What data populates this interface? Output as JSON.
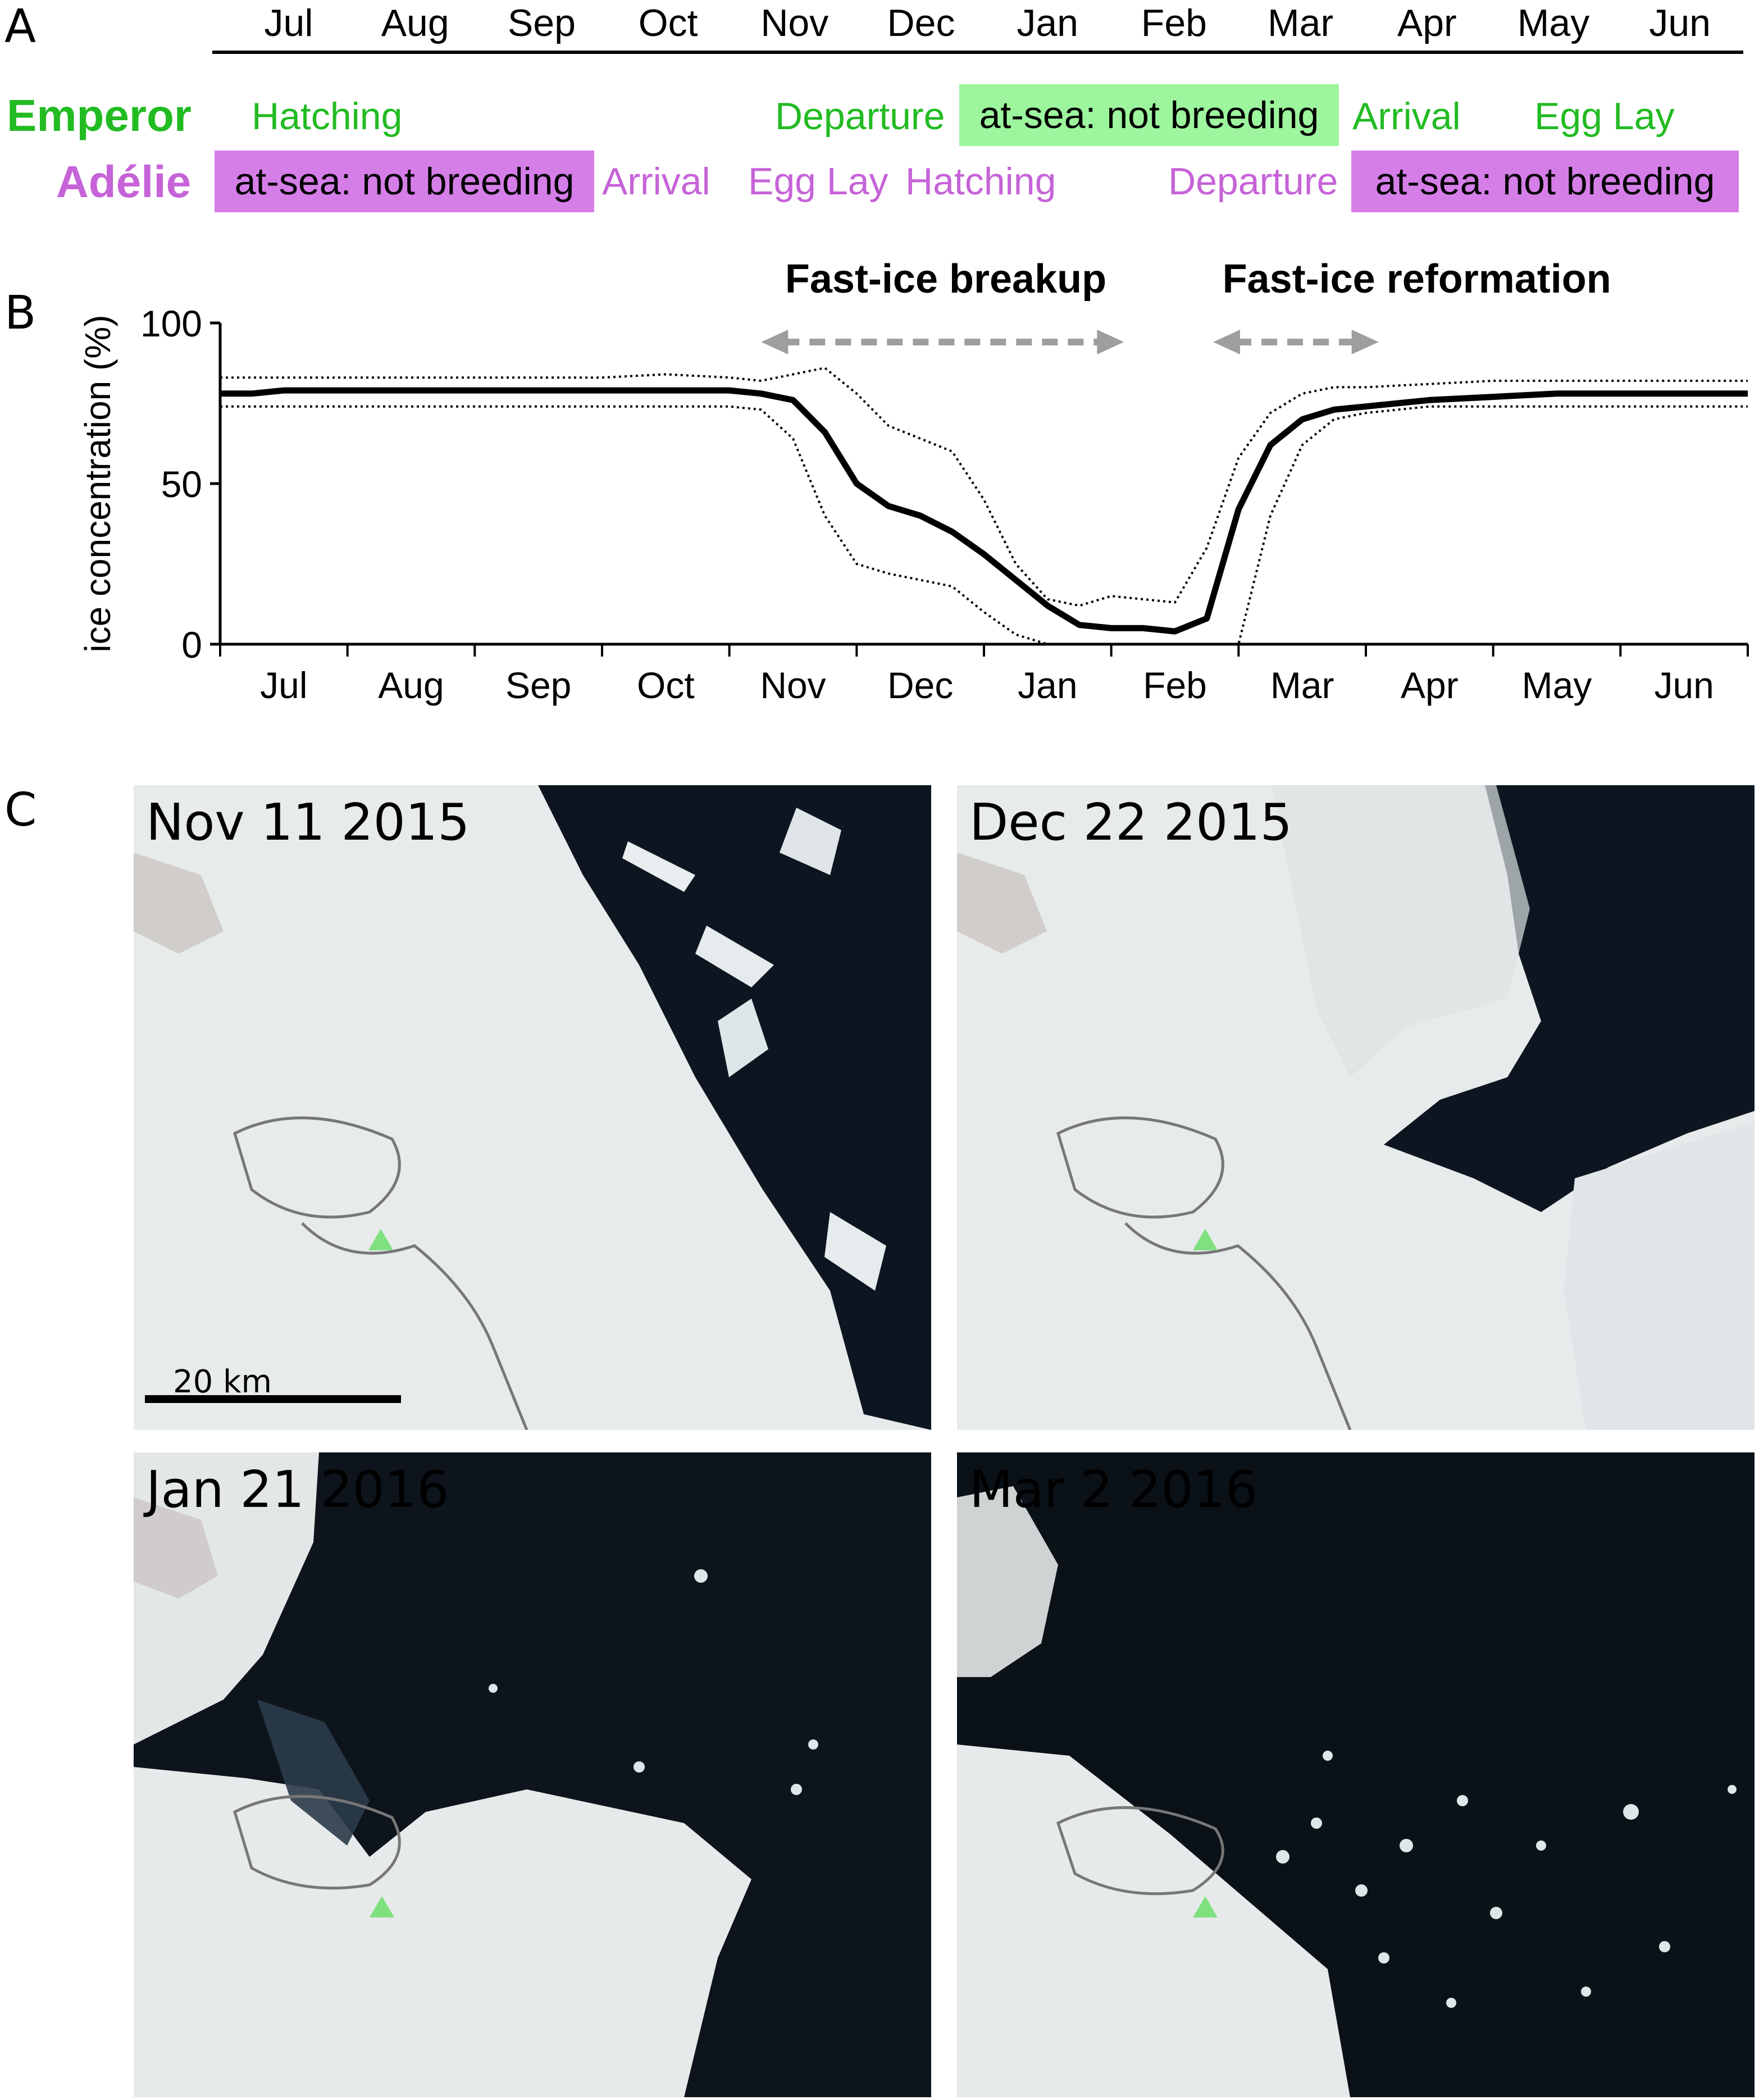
{
  "panel_a": {
    "letter": "A",
    "months": [
      "Jul",
      "Aug",
      "Sep",
      "Oct",
      "Nov",
      "Dec",
      "Jan",
      "Feb",
      "Mar",
      "Apr",
      "May",
      "Jun"
    ],
    "emperor": {
      "label": "Emperor",
      "color": "#22bb22",
      "events": [
        "Hatching",
        "Departure",
        "Arrival",
        "Egg Lay"
      ],
      "box_label": "at-sea: not breeding",
      "box_color": "#9df59d"
    },
    "adelie": {
      "label": "Adélie",
      "color": "#c663d8",
      "events": [
        "Arrival",
        "Egg Lay",
        "Hatching",
        "Departure"
      ],
      "box_labels": [
        "at-sea: not breeding",
        "at-sea: not breeding"
      ],
      "box_color": "#d57ee8"
    }
  },
  "panel_b": {
    "letter": "B",
    "annotations": [
      "Fast-ice breakup",
      "Fast-ice reformation"
    ],
    "arrow_color": "#9e9e9e"
  },
  "chart_data": {
    "type": "line",
    "title": "",
    "xlabel": "",
    "ylabel": "ice concentration (%)",
    "ylim": [
      0,
      100
    ],
    "yticks": [
      0,
      50,
      100
    ],
    "xtick_labels": [
      "Jul",
      "Aug",
      "Sep",
      "Oct",
      "Nov",
      "Dec",
      "Jan",
      "Feb",
      "Mar",
      "Apr",
      "May",
      "Jun"
    ],
    "grid": false,
    "x_months": [
      0,
      0.25,
      0.5,
      0.75,
      1,
      1.5,
      2,
      2.5,
      3,
      3.5,
      4,
      4.25,
      4.5,
      4.75,
      5,
      5.25,
      5.5,
      5.75,
      6,
      6.25,
      6.5,
      6.75,
      7,
      7.25,
      7.5,
      7.75,
      8,
      8.25,
      8.5,
      8.75,
      9,
      9.5,
      10,
      10.5,
      11,
      11.5,
      12
    ],
    "series": [
      {
        "style": "solid",
        "color": "#000000",
        "values": [
          78,
          78,
          79,
          79,
          79,
          79,
          79,
          79,
          79,
          79,
          79,
          78,
          76,
          66,
          50,
          43,
          40,
          35,
          28,
          20,
          12,
          6,
          5,
          5,
          4,
          8,
          42,
          62,
          70,
          73,
          74,
          76,
          77,
          78,
          78,
          78,
          78
        ]
      },
      {
        "style": "dotted",
        "color": "#000000",
        "values": [
          83,
          83,
          83,
          83,
          83,
          83,
          83,
          83,
          83,
          84,
          83,
          82,
          84,
          86,
          78,
          68,
          64,
          60,
          45,
          25,
          14,
          12,
          15,
          14,
          13,
          30,
          58,
          72,
          78,
          80,
          80,
          81,
          82,
          82,
          82,
          82,
          82
        ]
      },
      {
        "style": "dotted",
        "color": "#000000",
        "values": [
          74,
          74,
          74,
          74,
          74,
          74,
          74,
          74,
          74,
          74,
          74,
          73,
          64,
          40,
          25,
          22,
          20,
          18,
          10,
          3,
          0,
          0,
          0,
          0,
          0,
          0,
          0,
          40,
          62,
          70,
          72,
          74,
          74,
          74,
          74,
          74,
          74
        ]
      }
    ]
  },
  "panel_c": {
    "letter": "C",
    "images": [
      {
        "date": "Nov 11 2015"
      },
      {
        "date": "Dec 22 2015"
      },
      {
        "date": "Jan 21 2016"
      },
      {
        "date": "Mar 2 2016"
      }
    ],
    "scale_label": "20 km",
    "marker_color": "#7ee07e"
  }
}
